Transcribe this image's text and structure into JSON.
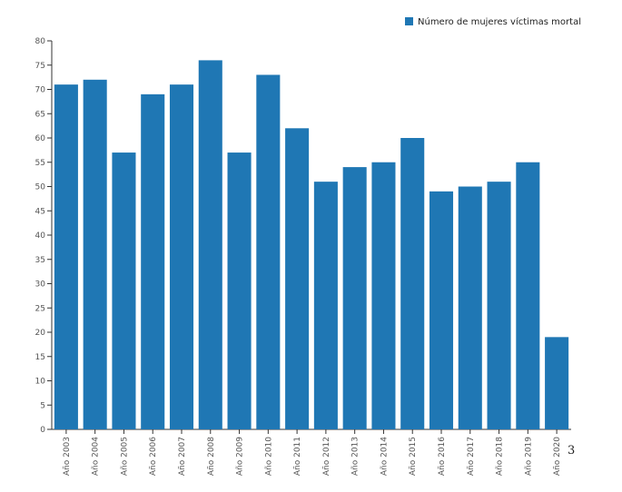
{
  "chart_data": {
    "type": "bar",
    "categories": [
      "Año 2003",
      "Año 2004",
      "Año 2005",
      "Año 2006",
      "Año 2007",
      "Año 2008",
      "Año 2009",
      "Año 2010",
      "Año 2011",
      "Año 2012",
      "Año 2013",
      "Año 2014",
      "Año 2015",
      "Año 2016",
      "Año 2017",
      "Año 2018",
      "Año 2019",
      "Año 2020"
    ],
    "series": [
      {
        "name": "Número de mujeres víctimas mortal",
        "values": [
          71,
          72,
          57,
          69,
          71,
          76,
          57,
          73,
          62,
          51,
          54,
          55,
          60,
          49,
          50,
          51,
          55,
          19
        ]
      }
    ],
    "title": "",
    "xlabel": "",
    "ylabel": "",
    "ylim": [
      0,
      80
    ],
    "yticks": [
      0,
      5,
      10,
      15,
      20,
      25,
      30,
      35,
      40,
      45,
      50,
      55,
      60,
      65,
      70,
      75,
      80
    ],
    "grid": false,
    "legend": "top-right",
    "bar_color": "#1f77b4"
  },
  "stray_text": "3"
}
